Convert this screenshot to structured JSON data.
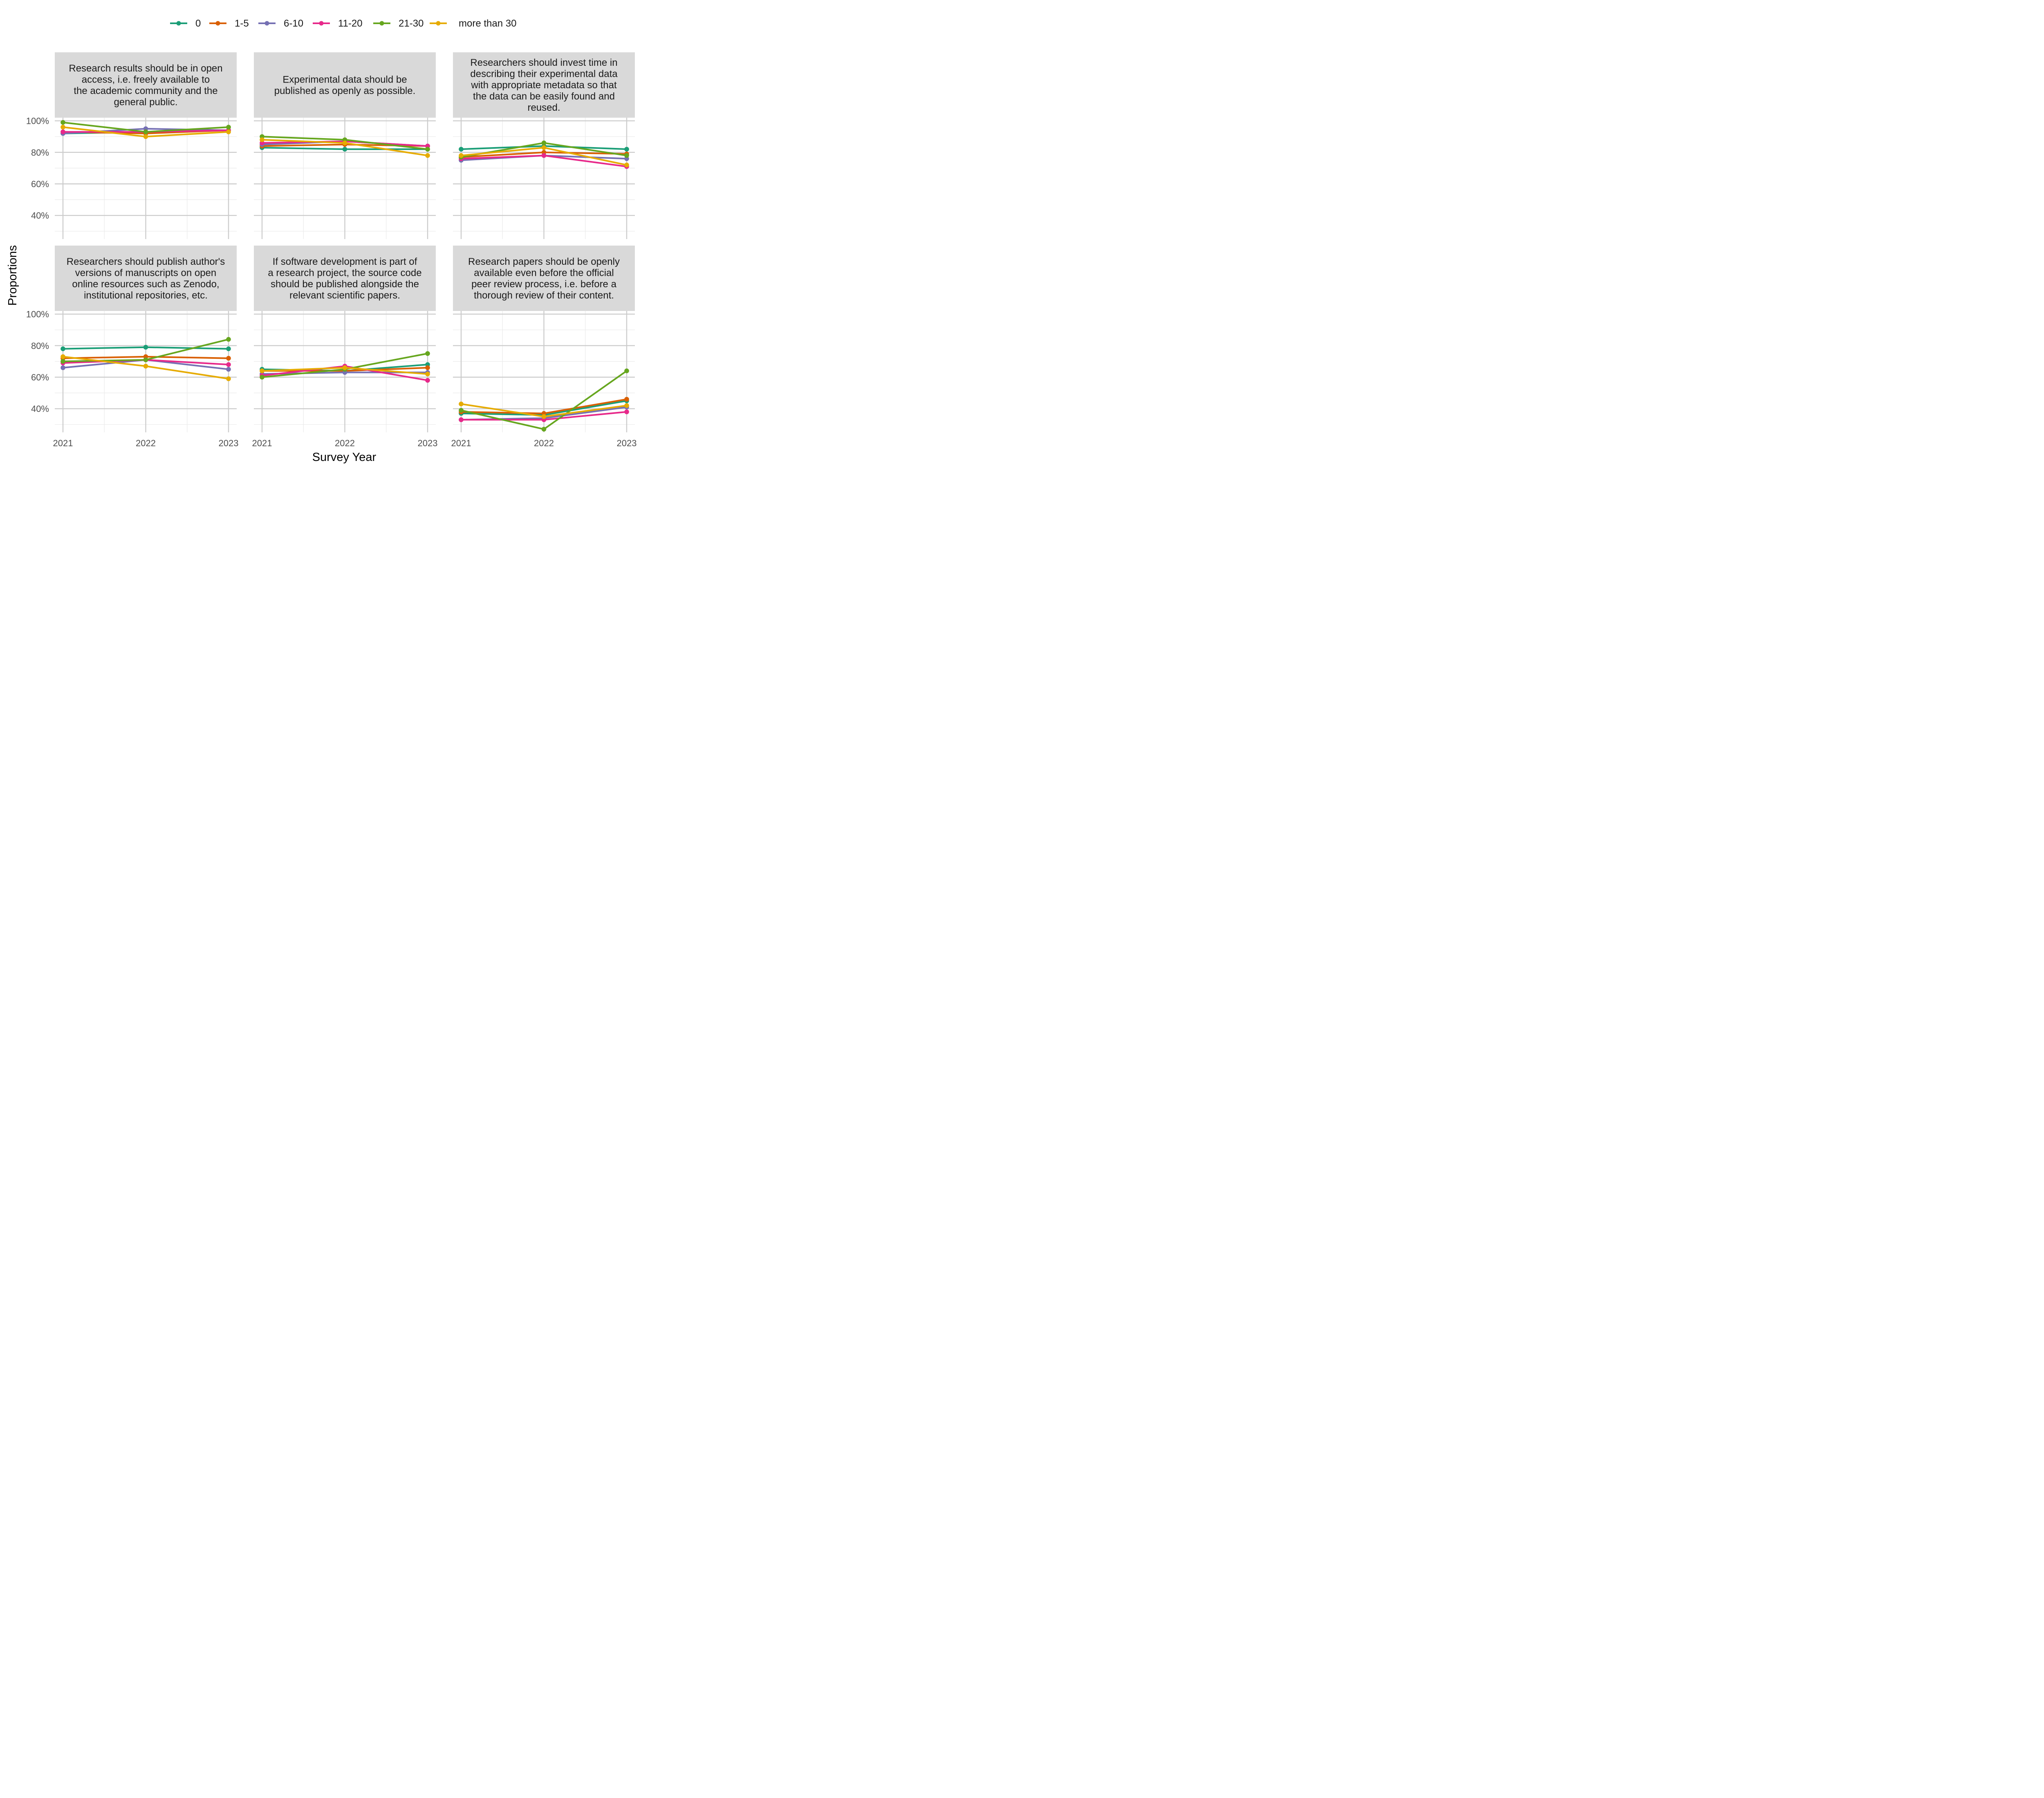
{
  "chart_data": {
    "type": "line",
    "xlabel": "Survey Year",
    "ylabel": "Proportions",
    "x": [
      2021,
      2022,
      2023
    ],
    "x_tick_labels": [
      "2021",
      "2022",
      "2023"
    ],
    "ylim": [
      0.25,
      1.02
    ],
    "y_ticks": [
      0.4,
      0.6,
      0.8,
      1.0
    ],
    "y_tick_labels": [
      "40%",
      "60%",
      "80%",
      "100%"
    ],
    "grid": true,
    "legend_position": "top",
    "series_meta": [
      {
        "name": "0",
        "color": "#1b9e77"
      },
      {
        "name": "1-5",
        "color": "#d95f02"
      },
      {
        "name": "6-10",
        "color": "#7570b3"
      },
      {
        "name": "11-20",
        "color": "#e7298a"
      },
      {
        "name": "21-30",
        "color": "#66a61e"
      },
      {
        "name": "more than 30",
        "color": "#e6ab02"
      }
    ],
    "panels": [
      {
        "title_lines": [
          "Research results should be in open",
          "access, i.e. freely available to",
          "the academic community and the",
          "general public."
        ],
        "series": [
          {
            "name": "0",
            "values": [
              0.92,
              0.93,
              0.94
            ]
          },
          {
            "name": "1-5",
            "values": [
              0.93,
              0.92,
              0.94
            ]
          },
          {
            "name": "6-10",
            "values": [
              0.92,
              0.95,
              0.94
            ]
          },
          {
            "name": "11-20",
            "values": [
              0.93,
              0.93,
              0.94
            ]
          },
          {
            "name": "21-30",
            "values": [
              0.99,
              0.93,
              0.96
            ]
          },
          {
            "name": "more than 30",
            "values": [
              0.96,
              0.9,
              0.93
            ]
          }
        ]
      },
      {
        "title_lines": [
          "Experimental data should be",
          "published as openly as possible."
        ],
        "series": [
          {
            "name": "0",
            "values": [
              0.83,
              0.82,
              0.82
            ]
          },
          {
            "name": "1-5",
            "values": [
              0.84,
              0.85,
              0.84
            ]
          },
          {
            "name": "6-10",
            "values": [
              0.85,
              0.87,
              0.84
            ]
          },
          {
            "name": "11-20",
            "values": [
              0.86,
              0.87,
              0.84
            ]
          },
          {
            "name": "21-30",
            "values": [
              0.9,
              0.88,
              0.82
            ]
          },
          {
            "name": "more than 30",
            "values": [
              0.88,
              0.86,
              0.78
            ]
          }
        ]
      },
      {
        "title_lines": [
          "Researchers should invest time in",
          "describing their experimental data",
          "with appropriate metadata so that",
          "the data can be easily found and",
          "reused."
        ],
        "series": [
          {
            "name": "0",
            "values": [
              0.82,
              0.84,
              0.82
            ]
          },
          {
            "name": "1-5",
            "values": [
              0.77,
              0.8,
              0.79
            ]
          },
          {
            "name": "6-10",
            "values": [
              0.75,
              0.78,
              0.76
            ]
          },
          {
            "name": "11-20",
            "values": [
              0.76,
              0.78,
              0.71
            ]
          },
          {
            "name": "21-30",
            "values": [
              0.77,
              0.86,
              0.78
            ]
          },
          {
            "name": "more than 30",
            "values": [
              0.78,
              0.83,
              0.72
            ]
          }
        ]
      },
      {
        "title_lines": [
          "Researchers should publish author's",
          "versions of manuscripts on open",
          "online resources such as Zenodo,",
          "institutional repositories, etc."
        ],
        "series": [
          {
            "name": "0",
            "values": [
              0.78,
              0.79,
              0.78
            ]
          },
          {
            "name": "1-5",
            "values": [
              0.72,
              0.73,
              0.72
            ]
          },
          {
            "name": "6-10",
            "values": [
              0.66,
              0.71,
              0.65
            ]
          },
          {
            "name": "11-20",
            "values": [
              0.69,
              0.71,
              0.68
            ]
          },
          {
            "name": "21-30",
            "values": [
              0.7,
              0.71,
              0.84
            ]
          },
          {
            "name": "more than 30",
            "values": [
              0.73,
              0.67,
              0.59
            ]
          }
        ]
      },
      {
        "title_lines": [
          "If software development is part of",
          "a research project, the source code",
          "should be published alongside the",
          "relevant scientific papers."
        ],
        "series": [
          {
            "name": "0",
            "values": [
              0.65,
              0.64,
              0.68
            ]
          },
          {
            "name": "1-5",
            "values": [
              0.64,
              0.64,
              0.66
            ]
          },
          {
            "name": "6-10",
            "values": [
              0.62,
              0.63,
              0.63
            ]
          },
          {
            "name": "11-20",
            "values": [
              0.61,
              0.67,
              0.58
            ]
          },
          {
            "name": "21-30",
            "values": [
              0.6,
              0.65,
              0.75
            ]
          },
          {
            "name": "more than 30",
            "values": [
              0.64,
              0.66,
              0.62
            ]
          }
        ]
      },
      {
        "title_lines": [
          "Research papers should be openly",
          "available even before the official",
          "peer review process, i.e. before a",
          "thorough review of their content."
        ],
        "series": [
          {
            "name": "0",
            "values": [
              0.37,
              0.36,
              0.45
            ]
          },
          {
            "name": "1-5",
            "values": [
              0.38,
              0.37,
              0.46
            ]
          },
          {
            "name": "6-10",
            "values": [
              0.33,
              0.34,
              0.41
            ]
          },
          {
            "name": "11-20",
            "values": [
              0.33,
              0.33,
              0.38
            ]
          },
          {
            "name": "21-30",
            "values": [
              0.39,
              0.27,
              0.64
            ]
          },
          {
            "name": "more than 30",
            "values": [
              0.43,
              0.35,
              0.42
            ]
          }
        ]
      }
    ]
  }
}
